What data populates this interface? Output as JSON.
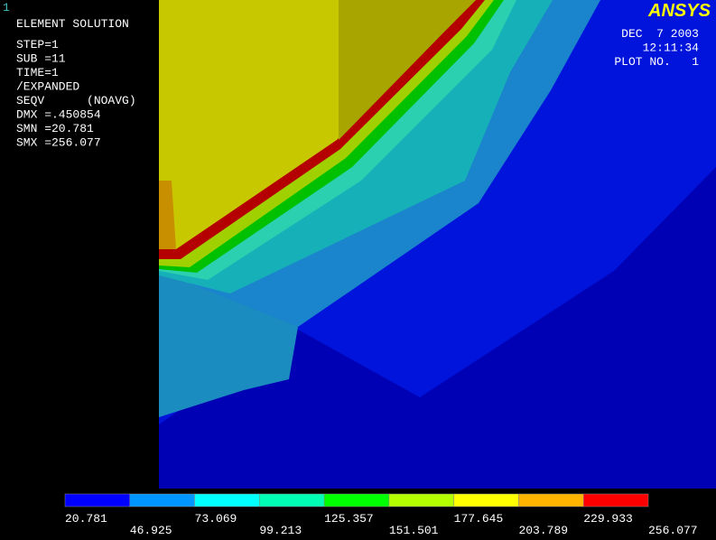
{
  "window_number": "1",
  "header": {
    "lines": [
      "ELEMENT SOLUTION",
      "STEP=1",
      "SUB =11",
      "TIME=1",
      "/EXPANDED",
      "SEQV      (NOAVG)",
      "DMX =.450854",
      "SMN =20.781",
      "SMX =256.077"
    ]
  },
  "logo": "ANSYS",
  "stamp": [
    "DEC  7 2003",
    "12:11:34",
    "PLOT NO.   1"
  ],
  "legend": {
    "colors": [
      "#0000ff",
      "#0096ff",
      "#00ffff",
      "#00ffb4",
      "#00ff00",
      "#b4ff00",
      "#ffff00",
      "#ffb400",
      "#ff0000"
    ],
    "bounds": [
      20.781,
      46.925,
      73.069,
      99.213,
      125.357,
      151.501,
      177.645,
      203.789,
      229.933,
      256.077
    ]
  }
}
